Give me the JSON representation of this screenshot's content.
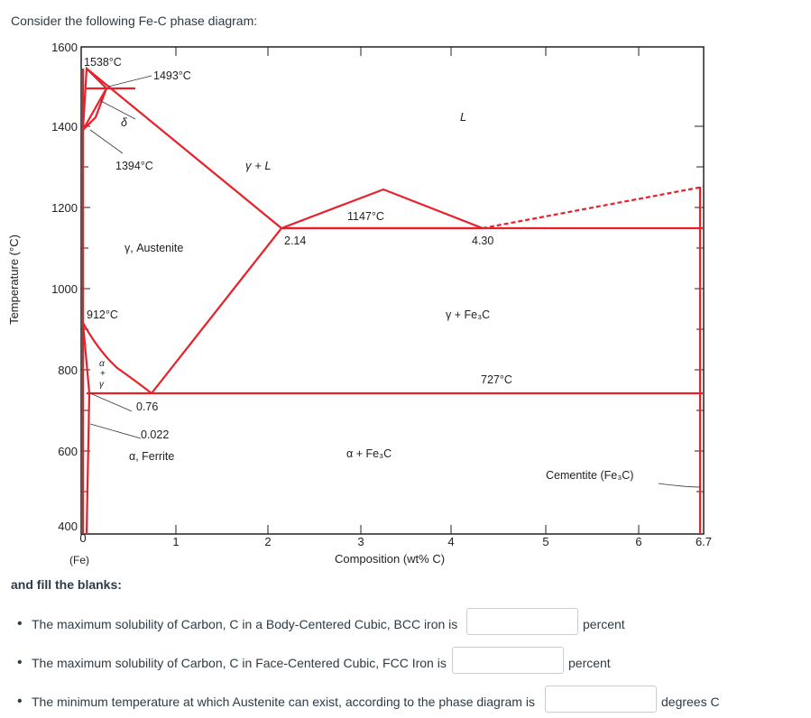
{
  "question": {
    "intro": "Consider the following Fe-C phase diagram:",
    "fill_title": "and fill the blanks:",
    "items": [
      {
        "text": "The maximum solubility of Carbon, C in a Body-Centered Cubic, BCC iron is",
        "value": "",
        "unit": "percent"
      },
      {
        "text": "The maximum solubility of Carbon, C in Face-Centered Cubic, FCC Iron is",
        "value": "",
        "unit": "percent"
      },
      {
        "text": "The minimum temperature at which Austenite can exist, according to the phase diagram is",
        "value": "",
        "unit": "degrees C"
      }
    ]
  },
  "diagram": {
    "ylabel": "Temperature (°C)",
    "xlabel": "Composition (wt% C)",
    "y_ticks": [
      "1600",
      "1400",
      "1200",
      "1000",
      "800",
      "600",
      "400"
    ],
    "x_ticks": [
      "0",
      "1",
      "2",
      "3",
      "4",
      "5",
      "6",
      "6.7"
    ],
    "x_origin_label": "(Fe)",
    "labels": {
      "t1538": "1538°C",
      "t1493": "1493°C",
      "delta": "δ",
      "liquid": "L",
      "t1394": "1394°C",
      "gammaL": "γ + L",
      "t1147": "1147°C",
      "c214": "2.14",
      "c430": "4.30",
      "austenite": "γ, Austenite",
      "t912": "912°C",
      "gammaFe3C": "γ + Fe₃C",
      "alpha": "α",
      "plus": "+",
      "gamma": "γ",
      "t727": "727°C",
      "c076": "0.76",
      "c0022": "0.022",
      "ferrite": "α, Ferrite",
      "alphaFe3C": "α + Fe₃C",
      "cementite": "Cementite (Fe₃C)"
    },
    "line_color": "#e8202a"
  }
}
